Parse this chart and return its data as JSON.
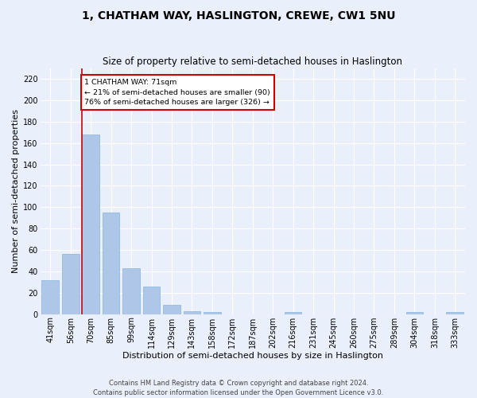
{
  "title": "1, CHATHAM WAY, HASLINGTON, CREWE, CW1 5NU",
  "subtitle": "Size of property relative to semi-detached houses in Haslington",
  "xlabel": "Distribution of semi-detached houses by size in Haslington",
  "ylabel": "Number of semi-detached properties",
  "categories": [
    "41sqm",
    "56sqm",
    "70sqm",
    "85sqm",
    "99sqm",
    "114sqm",
    "129sqm",
    "143sqm",
    "158sqm",
    "172sqm",
    "187sqm",
    "202sqm",
    "216sqm",
    "231sqm",
    "245sqm",
    "260sqm",
    "275sqm",
    "289sqm",
    "304sqm",
    "318sqm",
    "333sqm"
  ],
  "values": [
    32,
    56,
    168,
    95,
    43,
    26,
    9,
    3,
    2,
    0,
    0,
    0,
    2,
    0,
    0,
    0,
    0,
    0,
    2,
    0,
    2
  ],
  "bar_color": "#aec6e8",
  "bar_edge_color": "#8ab4d8",
  "property_line_bin": 2,
  "annotation_title": "1 CHATHAM WAY: 71sqm",
  "annotation_line1": "← 21% of semi-detached houses are smaller (90)",
  "annotation_line2": "76% of semi-detached houses are larger (326) →",
  "annotation_box_color": "#ffffff",
  "annotation_box_edge": "#cc0000",
  "line_color": "#cc0000",
  "ylim": [
    0,
    230
  ],
  "yticks": [
    0,
    20,
    40,
    60,
    80,
    100,
    120,
    140,
    160,
    180,
    200,
    220
  ],
  "footer1": "Contains HM Land Registry data © Crown copyright and database right 2024.",
  "footer2": "Contains public sector information licensed under the Open Government Licence v3.0.",
  "bg_color": "#eaf0fb",
  "grid_color": "#ffffff",
  "title_fontsize": 10,
  "subtitle_fontsize": 8.5,
  "axis_label_fontsize": 8,
  "tick_fontsize": 7,
  "footer_fontsize": 6
}
